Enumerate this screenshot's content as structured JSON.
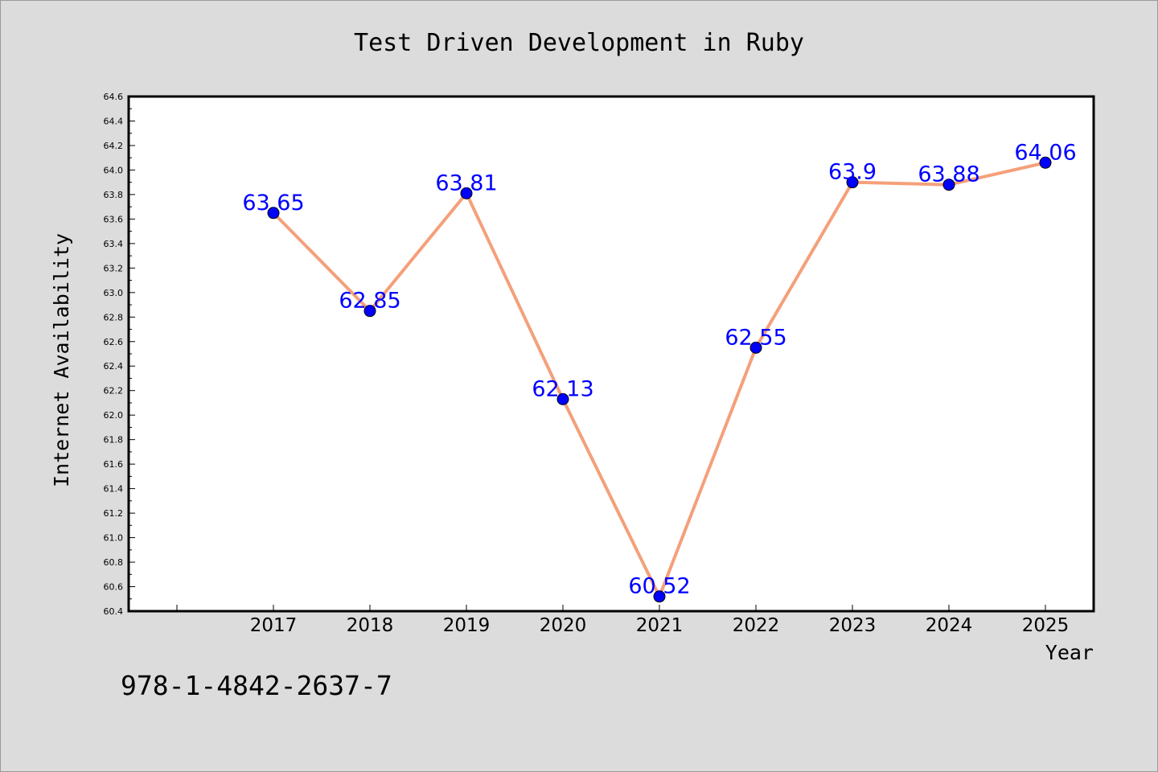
{
  "chart_data": {
    "type": "line",
    "title": "Test Driven Development in Ruby",
    "xlabel": "Year",
    "ylabel": "Internet Availability",
    "categories": [
      "2017",
      "2018",
      "2019",
      "2020",
      "2021",
      "2022",
      "2023",
      "2024",
      "2025"
    ],
    "series": [
      {
        "values": [
          63.65,
          62.85,
          63.81,
          62.13,
          60.52,
          62.55,
          63.9,
          63.88,
          64.06
        ],
        "data_labels": [
          "63.65",
          "62.85",
          "63.81",
          "62.13",
          "60.52",
          "62.55",
          "63.9",
          "63.88",
          "64.06"
        ]
      }
    ],
    "ylim": [
      60.4,
      64.6
    ],
    "yticks": [
      "60.4",
      "60.6",
      "60.8",
      "61.0",
      "61.2",
      "61.4",
      "61.6",
      "61.8",
      "62.0",
      "62.2",
      "62.4",
      "62.6",
      "62.8",
      "63.0",
      "63.2",
      "63.4",
      "63.6",
      "63.8",
      "64.0",
      "64.2",
      "64.4",
      "64.6"
    ],
    "grid": false,
    "line_color": "#f4a07a",
    "marker_color": "#0000ff",
    "label_color": "#0000ff"
  },
  "footer_text": "978-1-4842-2637-7"
}
